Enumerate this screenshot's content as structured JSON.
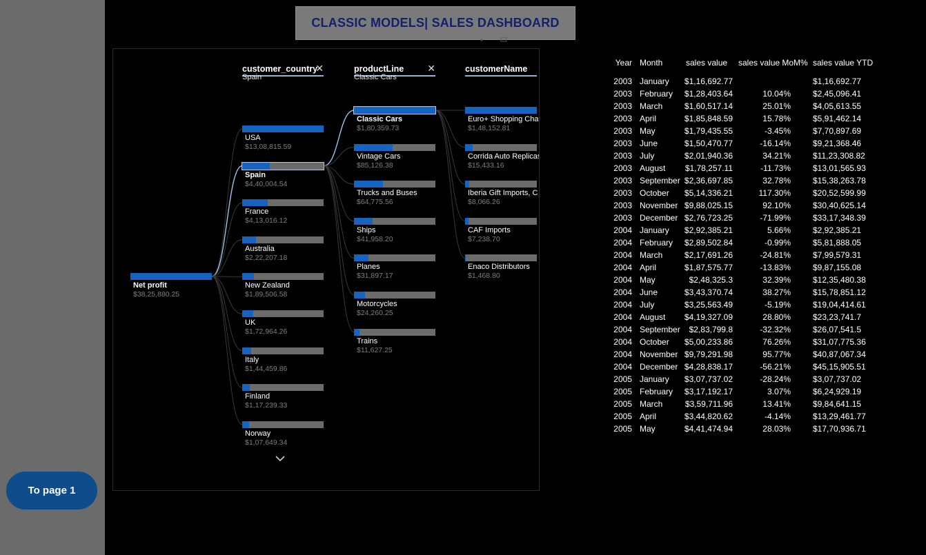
{
  "title": "CLASSIC MODELS| SALES DASHBOARD",
  "nav_button": "To page 1",
  "colors": {
    "bar_fill": "#1664c0",
    "bar_track": "#6b6b6b",
    "title_text": "#15206b",
    "nav_button": "#0f4c8c",
    "sidebar": "#6b6b6b"
  },
  "tree": {
    "root": {
      "label": "Net profit",
      "value": "$38,25,880.25",
      "fill": 1.0
    },
    "levels": [
      {
        "title": "customer_country",
        "selected": "Spain",
        "removable": true
      },
      {
        "title": "productLine",
        "selected": "Classic Cars",
        "removable": true
      },
      {
        "title": "customerName",
        "selected": "",
        "removable": false
      }
    ],
    "countries": [
      {
        "label": "USA",
        "value": "$13,08,815.59",
        "fill": 1.0,
        "selected": false
      },
      {
        "label": "Spain",
        "value": "$4,40,004.54",
        "fill": 0.336,
        "selected": true
      },
      {
        "label": "France",
        "value": "$4,13,016.12",
        "fill": 0.316,
        "selected": false
      },
      {
        "label": "Australia",
        "value": "$2,22,207.18",
        "fill": 0.17,
        "selected": false
      },
      {
        "label": "New Zealand",
        "value": "$1,89,506.58",
        "fill": 0.145,
        "selected": false
      },
      {
        "label": "UK",
        "value": "$1,72,964.26",
        "fill": 0.132,
        "selected": false
      },
      {
        "label": "Italy",
        "value": "$1,44,459.86",
        "fill": 0.11,
        "selected": false
      },
      {
        "label": "Finland",
        "value": "$1,17,239.33",
        "fill": 0.09,
        "selected": false
      },
      {
        "label": "Norway",
        "value": "$1,07,649.34",
        "fill": 0.082,
        "selected": false
      }
    ],
    "product_lines": [
      {
        "label": "Classic Cars",
        "value": "$1,80,359.73",
        "fill": 1.0,
        "selected": true
      },
      {
        "label": "Vintage Cars",
        "value": "$85,126.38",
        "fill": 0.472,
        "selected": false
      },
      {
        "label": "Trucks and Buses",
        "value": "$64,775.56",
        "fill": 0.359,
        "selected": false
      },
      {
        "label": "Ships",
        "value": "$41,958.20",
        "fill": 0.233,
        "selected": false
      },
      {
        "label": "Planes",
        "value": "$31,897.17",
        "fill": 0.177,
        "selected": false
      },
      {
        "label": "Motorcycles",
        "value": "$24,260.25",
        "fill": 0.135,
        "selected": false
      },
      {
        "label": "Trains",
        "value": "$11,627.25",
        "fill": 0.064,
        "selected": false
      }
    ],
    "customers": [
      {
        "label": "Euro+ Shopping Cha",
        "value": "$1,48,152.81",
        "fill": 1.0
      },
      {
        "label": "Corrida Auto Replicas",
        "value": "$15,433.16",
        "fill": 0.104
      },
      {
        "label": "Iberia Gift Imports, C",
        "value": "$8,066.26",
        "fill": 0.054
      },
      {
        "label": "CAF Imports",
        "value": "$7,238.70",
        "fill": 0.049
      },
      {
        "label": "Enaco Distributors",
        "value": "$1,468.80",
        "fill": 0.01
      }
    ]
  },
  "table": {
    "headers": {
      "year": "Year",
      "month": "Month",
      "sales": "sales value",
      "mom": "sales value MoM%",
      "ytd": "sales value YTD"
    },
    "rows": [
      {
        "year": "2003",
        "month": "January",
        "sales": "$1,16,692.77",
        "mom": "",
        "ytd": "$1,16,692.77"
      },
      {
        "year": "2003",
        "month": "February",
        "sales": "$1,28,403.64",
        "mom": "10.04%",
        "ytd": "$2,45,096.41"
      },
      {
        "year": "2003",
        "month": "March",
        "sales": "$1,60,517.14",
        "mom": "25.01%",
        "ytd": "$4,05,613.55"
      },
      {
        "year": "2003",
        "month": "April",
        "sales": "$1,85,848.59",
        "mom": "15.78%",
        "ytd": "$5,91,462.14"
      },
      {
        "year": "2003",
        "month": "May",
        "sales": "$1,79,435.55",
        "mom": "-3.45%",
        "ytd": "$7,70,897.69"
      },
      {
        "year": "2003",
        "month": "June",
        "sales": "$1,50,470.77",
        "mom": "-16.14%",
        "ytd": "$9,21,368.46"
      },
      {
        "year": "2003",
        "month": "July",
        "sales": "$2,01,940.36",
        "mom": "34.21%",
        "ytd": "$11,23,308.82"
      },
      {
        "year": "2003",
        "month": "August",
        "sales": "$1,78,257.11",
        "mom": "-11.73%",
        "ytd": "$13,01,565.93"
      },
      {
        "year": "2003",
        "month": "September",
        "sales": "$2,36,697.85",
        "mom": "32.78%",
        "ytd": "$15,38,263.78"
      },
      {
        "year": "2003",
        "month": "October",
        "sales": "$5,14,336.21",
        "mom": "117.30%",
        "ytd": "$20,52,599.99"
      },
      {
        "year": "2003",
        "month": "November",
        "sales": "$9,88,025.15",
        "mom": "92.10%",
        "ytd": "$30,40,625.14"
      },
      {
        "year": "2003",
        "month": "December",
        "sales": "$2,76,723.25",
        "mom": "-71.99%",
        "ytd": "$33,17,348.39"
      },
      {
        "year": "2004",
        "month": "January",
        "sales": "$2,92,385.21",
        "mom": "5.66%",
        "ytd": "$2,92,385.21"
      },
      {
        "year": "2004",
        "month": "February",
        "sales": "$2,89,502.84",
        "mom": "-0.99%",
        "ytd": "$5,81,888.05"
      },
      {
        "year": "2004",
        "month": "March",
        "sales": "$2,17,691.26",
        "mom": "-24.81%",
        "ytd": "$7,99,579.31"
      },
      {
        "year": "2004",
        "month": "April",
        "sales": "$1,87,575.77",
        "mom": "-13.83%",
        "ytd": "$9,87,155.08"
      },
      {
        "year": "2004",
        "month": "May",
        "sales": "$2,48,325.3",
        "mom": "32.39%",
        "ytd": "$12,35,480.38"
      },
      {
        "year": "2004",
        "month": "June",
        "sales": "$3,43,370.74",
        "mom": "38.27%",
        "ytd": "$15,78,851.12"
      },
      {
        "year": "2004",
        "month": "July",
        "sales": "$3,25,563.49",
        "mom": "-5.19%",
        "ytd": "$19,04,414.61"
      },
      {
        "year": "2004",
        "month": "August",
        "sales": "$4,19,327.09",
        "mom": "28.80%",
        "ytd": "$23,23,741.7"
      },
      {
        "year": "2004",
        "month": "September",
        "sales": "$2,83,799.8",
        "mom": "-32.32%",
        "ytd": "$26,07,541.5"
      },
      {
        "year": "2004",
        "month": "October",
        "sales": "$5,00,233.86",
        "mom": "76.26%",
        "ytd": "$31,07,775.36"
      },
      {
        "year": "2004",
        "month": "November",
        "sales": "$9,79,291.98",
        "mom": "95.77%",
        "ytd": "$40,87,067.34"
      },
      {
        "year": "2004",
        "month": "December",
        "sales": "$4,28,838.17",
        "mom": "-56.21%",
        "ytd": "$45,15,905.51"
      },
      {
        "year": "2005",
        "month": "January",
        "sales": "$3,07,737.02",
        "mom": "-28.24%",
        "ytd": "$3,07,737.02"
      },
      {
        "year": "2005",
        "month": "February",
        "sales": "$3,17,192.17",
        "mom": "3.07%",
        "ytd": "$6,24,929.19"
      },
      {
        "year": "2005",
        "month": "March",
        "sales": "$3,59,711.96",
        "mom": "13.41%",
        "ytd": "$9,84,641.15"
      },
      {
        "year": "2005",
        "month": "April",
        "sales": "$3,44,820.62",
        "mom": "-4.14%",
        "ytd": "$13,29,461.77"
      },
      {
        "year": "2005",
        "month": "May",
        "sales": "$4,41,474.94",
        "mom": "28.03%",
        "ytd": "$17,70,936.71"
      }
    ]
  }
}
